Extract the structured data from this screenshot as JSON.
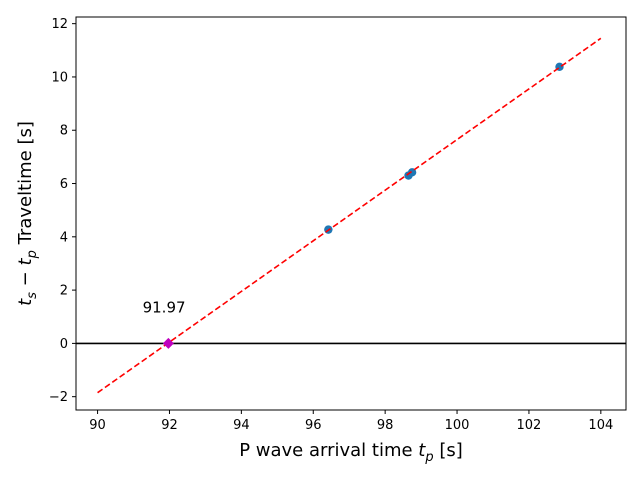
{
  "chart_data": {
    "type": "scatter",
    "xlabel": "P wave arrival time",
    "xlabel_math": {
      "var": "t",
      "sub": "p"
    },
    "xlabel_unit": "[s]",
    "ylabel_math": [
      {
        "var": "t",
        "sub": "s"
      },
      {
        "op": "−"
      },
      {
        "var": "t",
        "sub": "p"
      }
    ],
    "ylabel": "Traveltime [s]",
    "xlim": [
      89.4,
      104.7
    ],
    "ylim": [
      -2.5,
      12.25
    ],
    "xticks": [
      90,
      92,
      94,
      96,
      98,
      100,
      102,
      104
    ],
    "yticks": [
      -2,
      0,
      2,
      4,
      6,
      8,
      10,
      12
    ],
    "ytick_labels": [
      "−2",
      "0",
      "2",
      "4",
      "6",
      "8",
      "10",
      "12"
    ],
    "grid": false,
    "series": [
      {
        "kind": "points",
        "color": "#1f77b4",
        "x": [
          96.42,
          98.65,
          98.75,
          102.85
        ],
        "y": [
          4.27,
          6.3,
          6.42,
          10.38
        ]
      },
      {
        "kind": "dashed-line",
        "color": "#ff0000",
        "x": [
          90,
          104
        ],
        "y": [
          -1.85,
          11.45
        ]
      },
      {
        "kind": "marker",
        "color": "#bf00bf",
        "x": [
          91.97
        ],
        "y": [
          0
        ]
      }
    ],
    "hline": {
      "y": 0,
      "color": "#000000"
    },
    "annotations": [
      {
        "text": "91.97",
        "x": 91.85,
        "y": 1.15
      }
    ]
  }
}
